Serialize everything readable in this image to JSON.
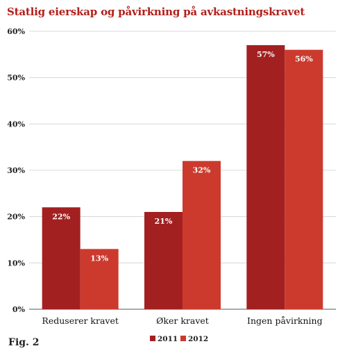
{
  "fig_label": "Fig. 2",
  "chart_data": {
    "type": "bar",
    "title": "Statlig eierskap og påvirkning på avkastningskravet",
    "categories": [
      "Reduserer kravet",
      "Øker kravet",
      "Ingen påvirkning"
    ],
    "series": [
      {
        "name": "2011",
        "values": [
          22,
          21,
          57
        ],
        "labels": [
          "22%",
          "21%",
          "57%"
        ],
        "color": "#a32020"
      },
      {
        "name": "2012",
        "values": [
          13,
          32,
          56
        ],
        "labels": [
          "13%",
          "32%",
          "56%"
        ],
        "color": "#cc3a2e"
      }
    ],
    "ylim": [
      0,
      60
    ],
    "yticks": [
      0,
      10,
      20,
      30,
      40,
      50,
      60
    ],
    "ytick_labels": [
      "0%",
      "10%",
      "20%",
      "30%",
      "40%",
      "50%",
      "60%"
    ],
    "grid": true,
    "legend": "bottom-center"
  }
}
